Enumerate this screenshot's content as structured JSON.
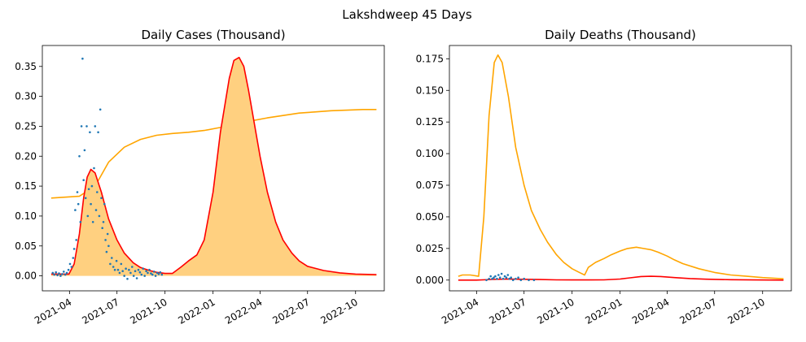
{
  "suptitle": "Lakshdweep 45 Days",
  "colors": {
    "scatter": "#1f77b4",
    "orange": "#ffa500",
    "red": "#ff0000",
    "fill": "#ffd080"
  },
  "chart_data": [
    {
      "type": "line",
      "title": "Daily Cases (Thousand)",
      "xlabel": "",
      "ylabel": "",
      "xlim": [
        "2021-02-08",
        "2022-11-25"
      ],
      "ylim": [
        -0.025,
        0.385
      ],
      "xticks": [
        "2021-04",
        "2021-07",
        "2021-10",
        "2022-01",
        "2022-04",
        "2022-07",
        "2022-10"
      ],
      "yticks": [
        0.0,
        0.05,
        0.1,
        0.15,
        0.2,
        0.25,
        0.3,
        0.35
      ],
      "ytick_labels": [
        "0.00",
        "0.05",
        "0.10",
        "0.15",
        "0.20",
        "0.25",
        "0.30",
        "0.35"
      ],
      "grid": false,
      "series": [
        {
          "kind": "line",
          "color": "#ffa500",
          "x": [
            "2021-02-25",
            "2021-04-20",
            "2021-05-20",
            "2021-06-15",
            "2021-07-15",
            "2021-08-15",
            "2021-09-15",
            "2021-10-15",
            "2021-11-15",
            "2021-12-15",
            "2022-01-15",
            "2022-02-15",
            "2022-03-15",
            "2022-04-15",
            "2022-05-15",
            "2022-06-15",
            "2022-07-15",
            "2022-08-15",
            "2022-09-15",
            "2022-10-15",
            "2022-11-10"
          ],
          "y": [
            0.13,
            0.133,
            0.15,
            0.19,
            0.215,
            0.228,
            0.235,
            0.238,
            0.24,
            0.243,
            0.248,
            0.254,
            0.259,
            0.264,
            0.268,
            0.272,
            0.274,
            0.276,
            0.277,
            0.278,
            0.278
          ]
        },
        {
          "kind": "area-line",
          "color": "#ff0000",
          "fill": "#ffd080",
          "x": [
            "2021-02-25",
            "2021-03-31",
            "2021-04-10",
            "2021-04-20",
            "2021-04-28",
            "2021-05-05",
            "2021-05-12",
            "2021-05-20",
            "2021-06-01",
            "2021-06-15",
            "2021-07-01",
            "2021-07-15",
            "2021-08-01",
            "2021-08-15",
            "2021-09-01",
            "2021-09-15",
            "2021-10-01",
            "2021-10-15",
            "2021-11-01",
            "2021-11-15",
            "2021-12-01",
            "2021-12-15",
            "2022-01-01",
            "2022-01-15",
            "2022-02-01",
            "2022-02-10",
            "2022-02-20",
            "2022-03-01",
            "2022-03-10",
            "2022-03-20",
            "2022-04-01",
            "2022-04-15",
            "2022-05-01",
            "2022-05-15",
            "2022-06-01",
            "2022-06-15",
            "2022-07-01",
            "2022-08-01",
            "2022-09-01",
            "2022-10-01",
            "2022-11-10"
          ],
          "y": [
            0.003,
            0.003,
            0.02,
            0.07,
            0.13,
            0.165,
            0.178,
            0.172,
            0.14,
            0.095,
            0.06,
            0.038,
            0.022,
            0.014,
            0.009,
            0.006,
            0.004,
            0.004,
            0.015,
            0.025,
            0.035,
            0.06,
            0.14,
            0.24,
            0.33,
            0.36,
            0.365,
            0.35,
            0.31,
            0.26,
            0.2,
            0.14,
            0.09,
            0.06,
            0.038,
            0.025,
            0.016,
            0.009,
            0.005,
            0.003,
            0.002
          ]
        },
        {
          "kind": "scatter",
          "color": "#1f77b4",
          "x": [
            "2021-02-28",
            "2021-03-03",
            "2021-03-06",
            "2021-03-09",
            "2021-03-12",
            "2021-03-15",
            "2021-03-18",
            "2021-03-21",
            "2021-03-24",
            "2021-03-27",
            "2021-03-30",
            "2021-04-02",
            "2021-04-05",
            "2021-04-08",
            "2021-04-10",
            "2021-04-12",
            "2021-04-14",
            "2021-04-16",
            "2021-04-18",
            "2021-04-20",
            "2021-04-22",
            "2021-04-24",
            "2021-04-26",
            "2021-04-28",
            "2021-04-30",
            "2021-05-02",
            "2021-05-04",
            "2021-05-06",
            "2021-05-08",
            "2021-05-10",
            "2021-05-12",
            "2021-05-14",
            "2021-05-16",
            "2021-05-18",
            "2021-05-20",
            "2021-05-22",
            "2021-05-24",
            "2021-05-26",
            "2021-05-28",
            "2021-05-30",
            "2021-06-01",
            "2021-06-03",
            "2021-06-05",
            "2021-06-07",
            "2021-06-09",
            "2021-06-11",
            "2021-06-13",
            "2021-06-15",
            "2021-06-18",
            "2021-06-21",
            "2021-06-24",
            "2021-06-27",
            "2021-06-30",
            "2021-07-03",
            "2021-07-06",
            "2021-07-09",
            "2021-07-12",
            "2021-07-15",
            "2021-07-18",
            "2021-07-21",
            "2021-07-24",
            "2021-07-27",
            "2021-07-30",
            "2021-08-02",
            "2021-08-05",
            "2021-08-08",
            "2021-08-11",
            "2021-08-14",
            "2021-08-17",
            "2021-08-20",
            "2021-08-23",
            "2021-08-26",
            "2021-08-29",
            "2021-09-01",
            "2021-09-04",
            "2021-09-07",
            "2021-09-10",
            "2021-09-13",
            "2021-09-16",
            "2021-09-19",
            "2021-09-22",
            "2021-09-25"
          ],
          "y": [
            0.005,
            0.002,
            0.006,
            0.001,
            0.004,
            0.0,
            0.003,
            0.007,
            0.002,
            0.005,
            0.01,
            0.02,
            0.015,
            0.03,
            0.045,
            0.11,
            0.06,
            0.14,
            0.12,
            0.2,
            0.09,
            0.25,
            0.363,
            0.16,
            0.21,
            0.13,
            0.25,
            0.1,
            0.145,
            0.24,
            0.12,
            0.15,
            0.09,
            0.18,
            0.25,
            0.11,
            0.14,
            0.24,
            0.1,
            0.278,
            0.13,
            0.08,
            0.09,
            0.12,
            0.06,
            0.04,
            0.07,
            0.05,
            0.02,
            0.03,
            0.015,
            0.01,
            0.025,
            0.01,
            0.005,
            0.02,
            0.008,
            0.0,
            0.012,
            -0.005,
            0.01,
            0.005,
            0.015,
            0.0,
            0.008,
            -0.004,
            0.01,
            0.006,
            0.002,
            0.012,
            0.0,
            0.008,
            0.005,
            0.01,
            0.004,
            0.002,
            0.007,
            0.0,
            0.005,
            0.003,
            0.006,
            0.002
          ]
        }
      ]
    },
    {
      "type": "line",
      "title": "Daily Deaths (Thousand)",
      "xlabel": "",
      "ylabel": "",
      "xlim": [
        "2021-02-08",
        "2022-11-25"
      ],
      "ylim": [
        -0.0085,
        0.1855
      ],
      "xticks": [
        "2021-04",
        "2021-07",
        "2021-10",
        "2022-01",
        "2022-04",
        "2022-07",
        "2022-10"
      ],
      "yticks": [
        0.0,
        0.025,
        0.05,
        0.075,
        0.1,
        0.125,
        0.15,
        0.175
      ],
      "ytick_labels": [
        "0.000",
        "0.025",
        "0.050",
        "0.075",
        "0.100",
        "0.125",
        "0.150",
        "0.175"
      ],
      "grid": false,
      "series": [
        {
          "kind": "line",
          "color": "#ffa500",
          "x": [
            "2021-02-25",
            "2021-03-05",
            "2021-03-20",
            "2021-04-05",
            "2021-04-15",
            "2021-04-25",
            "2021-05-05",
            "2021-05-12",
            "2021-05-20",
            "2021-06-01",
            "2021-06-15",
            "2021-07-01",
            "2021-07-15",
            "2021-08-01",
            "2021-08-15",
            "2021-09-01",
            "2021-09-15",
            "2021-10-01",
            "2021-10-15",
            "2021-10-25",
            "2021-11-01",
            "2021-11-15",
            "2021-12-01",
            "2021-12-15",
            "2022-01-01",
            "2022-01-15",
            "2022-02-01",
            "2022-02-15",
            "2022-03-01",
            "2022-03-15",
            "2022-04-01",
            "2022-04-15",
            "2022-05-01",
            "2022-06-01",
            "2022-07-01",
            "2022-08-01",
            "2022-09-01",
            "2022-10-01",
            "2022-11-10"
          ],
          "y": [
            0.003,
            0.004,
            0.004,
            0.003,
            0.05,
            0.13,
            0.172,
            0.178,
            0.172,
            0.145,
            0.105,
            0.075,
            0.055,
            0.04,
            0.03,
            0.02,
            0.014,
            0.009,
            0.006,
            0.004,
            0.01,
            0.014,
            0.017,
            0.02,
            0.023,
            0.025,
            0.026,
            0.025,
            0.024,
            0.022,
            0.019,
            0.016,
            0.013,
            0.009,
            0.006,
            0.004,
            0.003,
            0.002,
            0.001
          ]
        },
        {
          "kind": "line",
          "color": "#ff0000",
          "x": [
            "2021-02-25",
            "2021-04-01",
            "2021-05-01",
            "2021-06-01",
            "2021-07-01",
            "2021-08-01",
            "2021-09-01",
            "2021-10-01",
            "2021-11-01",
            "2021-12-01",
            "2022-01-01",
            "2022-01-20",
            "2022-02-10",
            "2022-03-01",
            "2022-03-20",
            "2022-04-15",
            "2022-05-15",
            "2022-06-15",
            "2022-08-01",
            "2022-09-15",
            "2022-11-10"
          ],
          "y": [
            0.0,
            0.0,
            0.0005,
            0.0008,
            0.0006,
            0.0004,
            0.0002,
            0.0001,
            0.0001,
            0.0002,
            0.0008,
            0.0018,
            0.0028,
            0.003,
            0.0028,
            0.002,
            0.0012,
            0.0007,
            0.0003,
            0.0001,
            0.0
          ]
        },
        {
          "kind": "scatter",
          "color": "#1f77b4",
          "x": [
            "2021-04-20",
            "2021-04-25",
            "2021-04-28",
            "2021-05-01",
            "2021-05-04",
            "2021-05-07",
            "2021-05-10",
            "2021-05-13",
            "2021-05-16",
            "2021-05-19",
            "2021-05-22",
            "2021-05-25",
            "2021-05-28",
            "2021-05-31",
            "2021-06-03",
            "2021-06-06",
            "2021-06-10",
            "2021-06-15",
            "2021-06-20",
            "2021-06-25",
            "2021-07-01",
            "2021-07-10",
            "2021-07-20"
          ],
          "y": [
            0.0,
            0.001,
            0.003,
            0.001,
            0.002,
            0.003,
            0.001,
            0.004,
            0.002,
            0.005,
            0.001,
            0.003,
            0.002,
            0.004,
            0.001,
            0.002,
            0.0,
            0.001,
            0.002,
            0.0,
            0.001,
            0.0,
            0.0
          ]
        }
      ]
    }
  ]
}
